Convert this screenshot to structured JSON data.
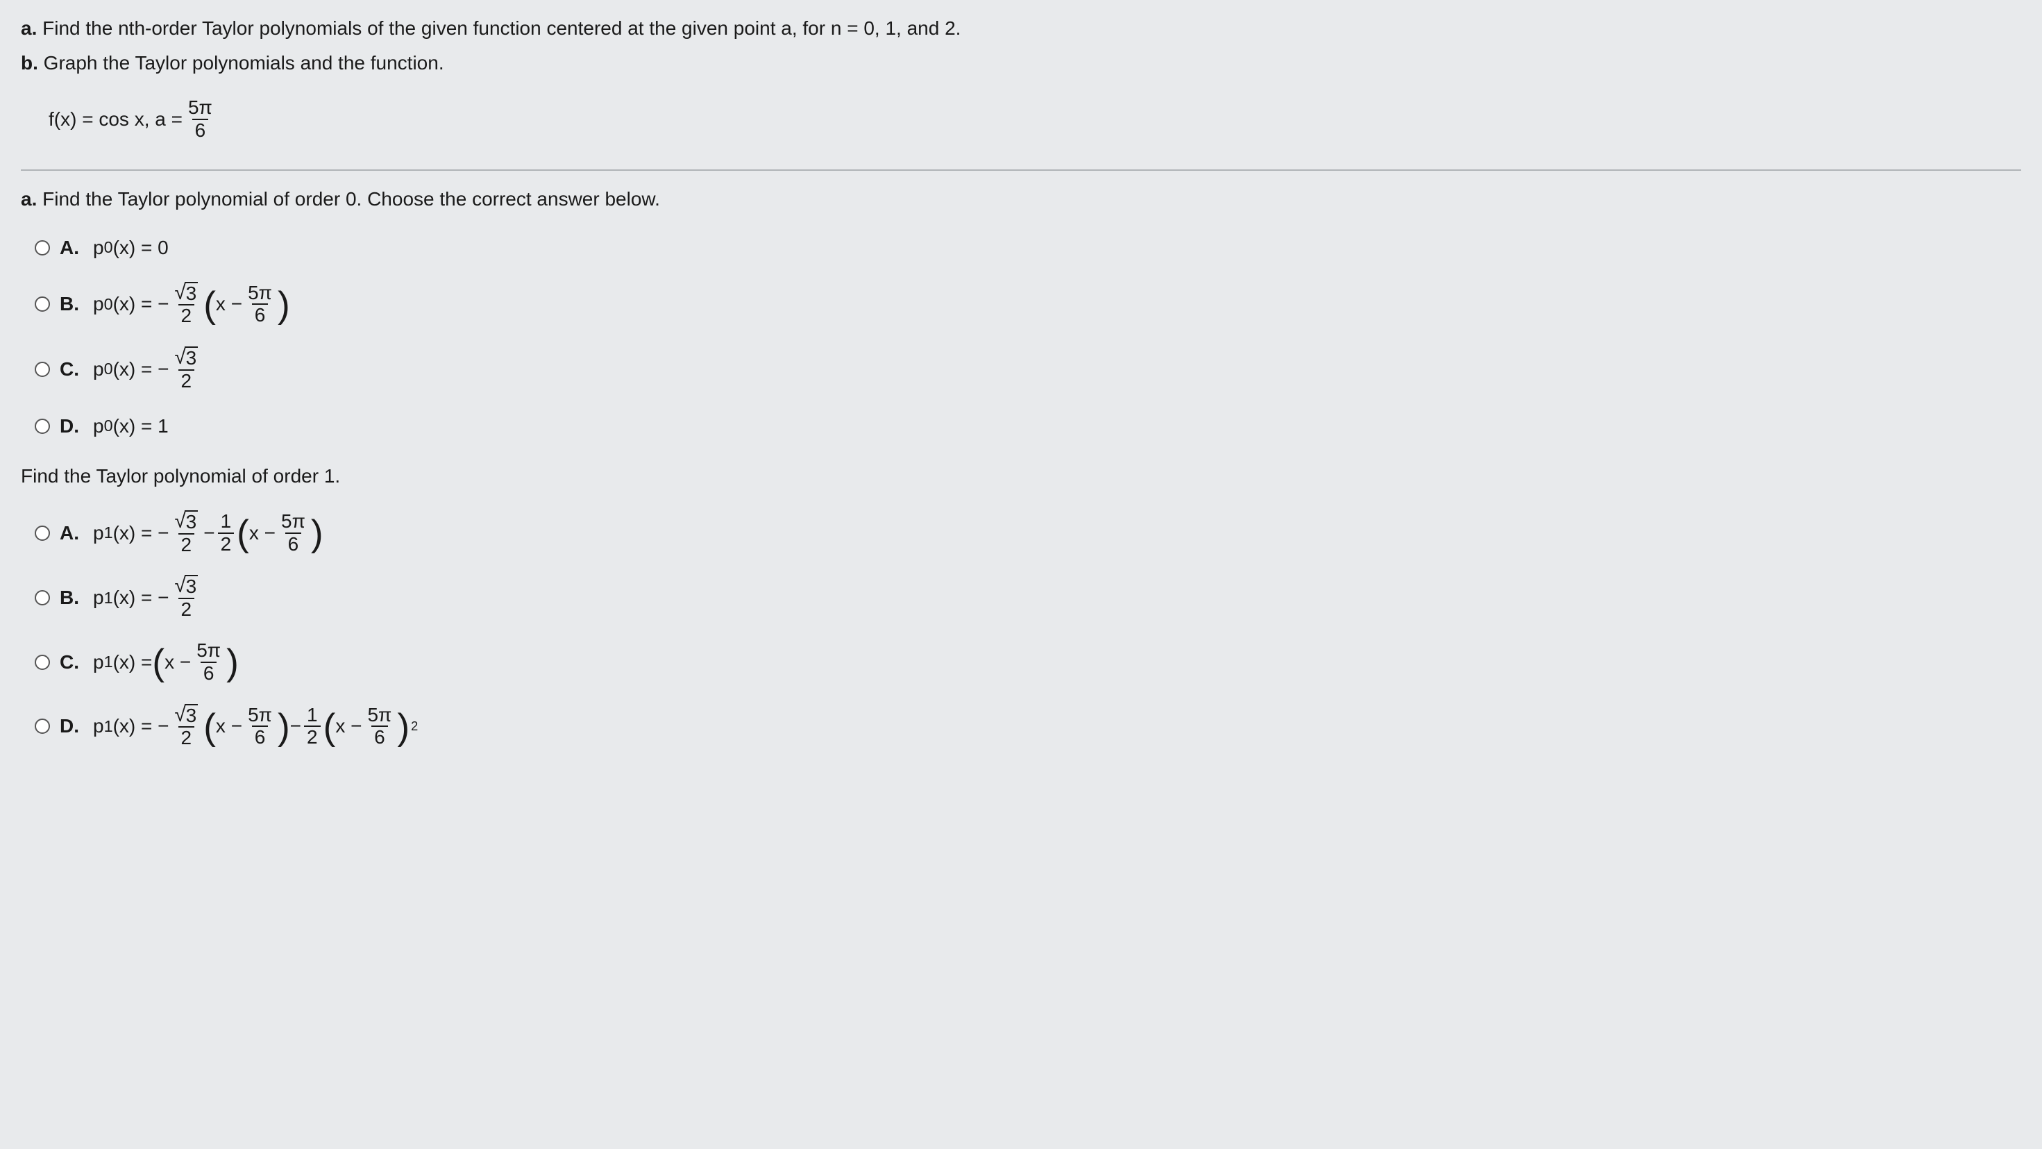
{
  "intro": {
    "line_a_label": "a.",
    "line_a_text": " Find the nth-order Taylor polynomials of the given function centered at the given point a, for n = 0, 1, and 2.",
    "line_b_label": "b.",
    "line_b_text": " Graph the Taylor polynomials and the function.",
    "fn_prefix": "f(x) = cos x,  a = ",
    "frac_num": "5π",
    "frac_den": "6"
  },
  "part_a": {
    "prompt_label": "a.",
    "prompt_text": " Find the Taylor polynomial of order 0. Choose the correct answer below.",
    "A": {
      "label": "A.",
      "text": "p",
      "sub": "0",
      "eq": "(x) = 0"
    },
    "B": {
      "label": "B.",
      "lhs_p": "p",
      "lhs_sub": "0",
      "lhs_eq": "(x) = − ",
      "sqrt_arg": "3",
      "frac_den": "2",
      "mid": " ",
      "inner_x": "x − ",
      "inner_num": "5π",
      "inner_den": "6"
    },
    "C": {
      "label": "C.",
      "lhs_p": "p",
      "lhs_sub": "0",
      "lhs_eq": "(x) = − ",
      "sqrt_arg": "3",
      "frac_den": "2"
    },
    "D": {
      "label": "D.",
      "text": "p",
      "sub": "0",
      "eq": "(x) = 1"
    }
  },
  "part_b": {
    "prompt": "Find the Taylor polynomial of order 1.",
    "A": {
      "label": "A.",
      "lhs_p": "p",
      "lhs_sub": "1",
      "lhs_eq": "(x) = − ",
      "sqrt_arg": "3",
      "frac1_den": "2",
      "minus": " − ",
      "half_num": "1",
      "half_den": "2",
      "inner_x": "x − ",
      "inner_num": "5π",
      "inner_den": "6"
    },
    "B": {
      "label": "B.",
      "lhs_p": "p",
      "lhs_sub": "1",
      "lhs_eq": "(x) = − ",
      "sqrt_arg": "3",
      "frac_den": "2"
    },
    "C": {
      "label": "C.",
      "lhs_p": "p",
      "lhs_sub": "1",
      "lhs_eq": "(x) = ",
      "inner_x": "x − ",
      "inner_num": "5π",
      "inner_den": "6"
    },
    "D": {
      "label": "D.",
      "lhs_p": "p",
      "lhs_sub": "1",
      "lhs_eq": "(x) = − ",
      "sqrt_arg": "3",
      "frac1_den": "2",
      "inner1_x": "x − ",
      "inner1_num": "5π",
      "inner1_den": "6",
      "minus": " − ",
      "half_num": "1",
      "half_den": "2",
      "inner2_x": "x − ",
      "inner2_num": "5π",
      "inner2_den": "6",
      "exp": "2"
    }
  }
}
